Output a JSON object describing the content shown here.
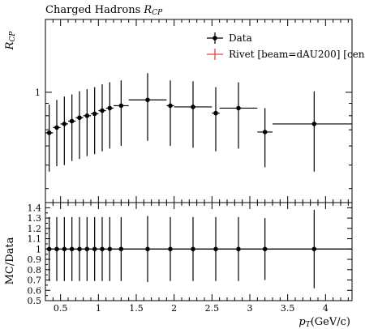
{
  "chart_data": [
    {
      "type": "scatter",
      "title": "Charged Hadrons R_CP",
      "title_main": "Charged Hadrons ",
      "title_sym": "R",
      "title_sub": "CP",
      "ylabel_sym": "R",
      "ylabel_sub": "CP",
      "xlabel": "",
      "yscale": "log",
      "ylim": [
        0.35,
        2.0
      ],
      "yticks": [
        {
          "value": 1,
          "label": "1"
        }
      ],
      "xlim": [
        0.3,
        4.35
      ],
      "legend": {
        "placement": "top-right",
        "entries": [
          {
            "label": "Data",
            "color": "#000000",
            "marker": "point"
          },
          {
            "label": "Rivet [beam=dAU200] [cen",
            "color": "#e8432c",
            "marker": "line"
          }
        ]
      },
      "series": [
        {
          "name": "Data",
          "color": "#000000",
          "points": [
            {
              "x": 0.35,
              "xlo": 0.3,
              "xhi": 0.4,
              "y": 0.68,
              "ylo": 0.47,
              "yhi": 0.89
            },
            {
              "x": 0.45,
              "xlo": 0.4,
              "xhi": 0.5,
              "y": 0.715,
              "ylo": 0.495,
              "yhi": 0.93
            },
            {
              "x": 0.55,
              "xlo": 0.5,
              "xhi": 0.6,
              "y": 0.74,
              "ylo": 0.5,
              "yhi": 0.96
            },
            {
              "x": 0.65,
              "xlo": 0.6,
              "xhi": 0.7,
              "y": 0.76,
              "ylo": 0.52,
              "yhi": 0.98
            },
            {
              "x": 0.75,
              "xlo": 0.7,
              "xhi": 0.8,
              "y": 0.785,
              "ylo": 0.53,
              "yhi": 1.01
            },
            {
              "x": 0.85,
              "xlo": 0.8,
              "xhi": 0.9,
              "y": 0.8,
              "ylo": 0.545,
              "yhi": 1.03
            },
            {
              "x": 0.95,
              "xlo": 0.9,
              "xhi": 1.0,
              "y": 0.815,
              "ylo": 0.555,
              "yhi": 1.05
            },
            {
              "x": 1.05,
              "xlo": 1.0,
              "xhi": 1.1,
              "y": 0.84,
              "ylo": 0.57,
              "yhi": 1.08
            },
            {
              "x": 1.15,
              "xlo": 1.1,
              "xhi": 1.2,
              "y": 0.86,
              "ylo": 0.585,
              "yhi": 1.1
            },
            {
              "x": 1.3,
              "xlo": 1.2,
              "xhi": 1.4,
              "y": 0.88,
              "ylo": 0.6,
              "yhi": 1.12
            },
            {
              "x": 1.65,
              "xlo": 1.4,
              "xhi": 1.9,
              "y": 0.93,
              "ylo": 0.63,
              "yhi": 1.2
            },
            {
              "x": 1.95,
              "xlo": 1.9,
              "xhi": 2.0,
              "y": 0.88,
              "ylo": 0.6,
              "yhi": 1.12
            },
            {
              "x": 2.25,
              "xlo": 2.0,
              "xhi": 2.5,
              "y": 0.87,
              "ylo": 0.59,
              "yhi": 1.11
            },
            {
              "x": 2.55,
              "xlo": 2.5,
              "xhi": 2.6,
              "y": 0.82,
              "ylo": 0.57,
              "yhi": 1.05
            },
            {
              "x": 2.85,
              "xlo": 2.6,
              "xhi": 3.1,
              "y": 0.86,
              "ylo": 0.585,
              "yhi": 1.1
            },
            {
              "x": 3.2,
              "xlo": 3.1,
              "xhi": 3.3,
              "y": 0.685,
              "ylo": 0.49,
              "yhi": 0.86
            },
            {
              "x": 3.85,
              "xlo": 3.3,
              "xhi": 4.35,
              "y": 0.74,
              "ylo": 0.47,
              "yhi": 1.01
            }
          ]
        }
      ]
    },
    {
      "type": "scatter",
      "ylabel": "MC/Data",
      "xlabel_sym": "p",
      "xlabel_sub": "T",
      "xlabel_rest": "(GeV/c)",
      "xlim": [
        0.3,
        4.35
      ],
      "ylim": [
        0.5,
        1.45
      ],
      "yticks": [
        {
          "value": 0.5,
          "label": "0.5"
        },
        {
          "value": 0.6,
          "label": "0.6"
        },
        {
          "value": 0.7,
          "label": "0.7"
        },
        {
          "value": 0.8,
          "label": "0.8"
        },
        {
          "value": 0.9,
          "label": "0.9"
        },
        {
          "value": 1.0,
          "label": "1"
        },
        {
          "value": 1.1,
          "label": "1.1"
        },
        {
          "value": 1.2,
          "label": "1.2"
        },
        {
          "value": 1.3,
          "label": "1.3"
        },
        {
          "value": 1.4,
          "label": "1.4"
        }
      ],
      "xticks": [
        {
          "value": 0.5,
          "label": "0.5"
        },
        {
          "value": 1.0,
          "label": "1"
        },
        {
          "value": 1.5,
          "label": "1.5"
        },
        {
          "value": 2.0,
          "label": "2"
        },
        {
          "value": 2.5,
          "label": "2.5"
        },
        {
          "value": 3.0,
          "label": "3"
        },
        {
          "value": 3.5,
          "label": "3.5"
        },
        {
          "value": 4.0,
          "label": "4"
        }
      ],
      "series": [
        {
          "name": "Data",
          "color": "#000000",
          "points": [
            {
              "x": 0.35,
              "xlo": 0.3,
              "xhi": 0.4,
              "y": 1.0,
              "ylo": 0.69,
              "yhi": 1.31
            },
            {
              "x": 0.45,
              "xlo": 0.4,
              "xhi": 0.5,
              "y": 1.0,
              "ylo": 0.69,
              "yhi": 1.31
            },
            {
              "x": 0.55,
              "xlo": 0.5,
              "xhi": 0.6,
              "y": 1.0,
              "ylo": 0.69,
              "yhi": 1.31
            },
            {
              "x": 0.65,
              "xlo": 0.6,
              "xhi": 0.7,
              "y": 1.0,
              "ylo": 0.69,
              "yhi": 1.31
            },
            {
              "x": 0.75,
              "xlo": 0.7,
              "xhi": 0.8,
              "y": 1.0,
              "ylo": 0.69,
              "yhi": 1.31
            },
            {
              "x": 0.85,
              "xlo": 0.8,
              "xhi": 0.9,
              "y": 1.0,
              "ylo": 0.69,
              "yhi": 1.31
            },
            {
              "x": 0.95,
              "xlo": 0.9,
              "xhi": 1.0,
              "y": 1.0,
              "ylo": 0.69,
              "yhi": 1.31
            },
            {
              "x": 1.05,
              "xlo": 1.0,
              "xhi": 1.1,
              "y": 1.0,
              "ylo": 0.69,
              "yhi": 1.31
            },
            {
              "x": 1.15,
              "xlo": 1.1,
              "xhi": 1.2,
              "y": 1.0,
              "ylo": 0.69,
              "yhi": 1.31
            },
            {
              "x": 1.3,
              "xlo": 1.2,
              "xhi": 1.4,
              "y": 1.0,
              "ylo": 0.69,
              "yhi": 1.31
            },
            {
              "x": 1.65,
              "xlo": 1.4,
              "xhi": 1.9,
              "y": 1.0,
              "ylo": 0.68,
              "yhi": 1.32
            },
            {
              "x": 1.95,
              "xlo": 1.9,
              "xhi": 2.0,
              "y": 1.0,
              "ylo": 0.69,
              "yhi": 1.31
            },
            {
              "x": 2.25,
              "xlo": 2.0,
              "xhi": 2.5,
              "y": 1.0,
              "ylo": 0.69,
              "yhi": 1.31
            },
            {
              "x": 2.55,
              "xlo": 2.5,
              "xhi": 2.6,
              "y": 1.0,
              "ylo": 0.69,
              "yhi": 1.31
            },
            {
              "x": 2.85,
              "xlo": 2.6,
              "xhi": 3.1,
              "y": 1.0,
              "ylo": 0.69,
              "yhi": 1.31
            },
            {
              "x": 3.2,
              "xlo": 3.1,
              "xhi": 3.3,
              "y": 1.0,
              "ylo": 0.7,
              "yhi": 1.3
            },
            {
              "x": 3.85,
              "xlo": 3.3,
              "xhi": 4.35,
              "y": 1.0,
              "ylo": 0.62,
              "yhi": 1.38
            }
          ]
        }
      ]
    }
  ]
}
